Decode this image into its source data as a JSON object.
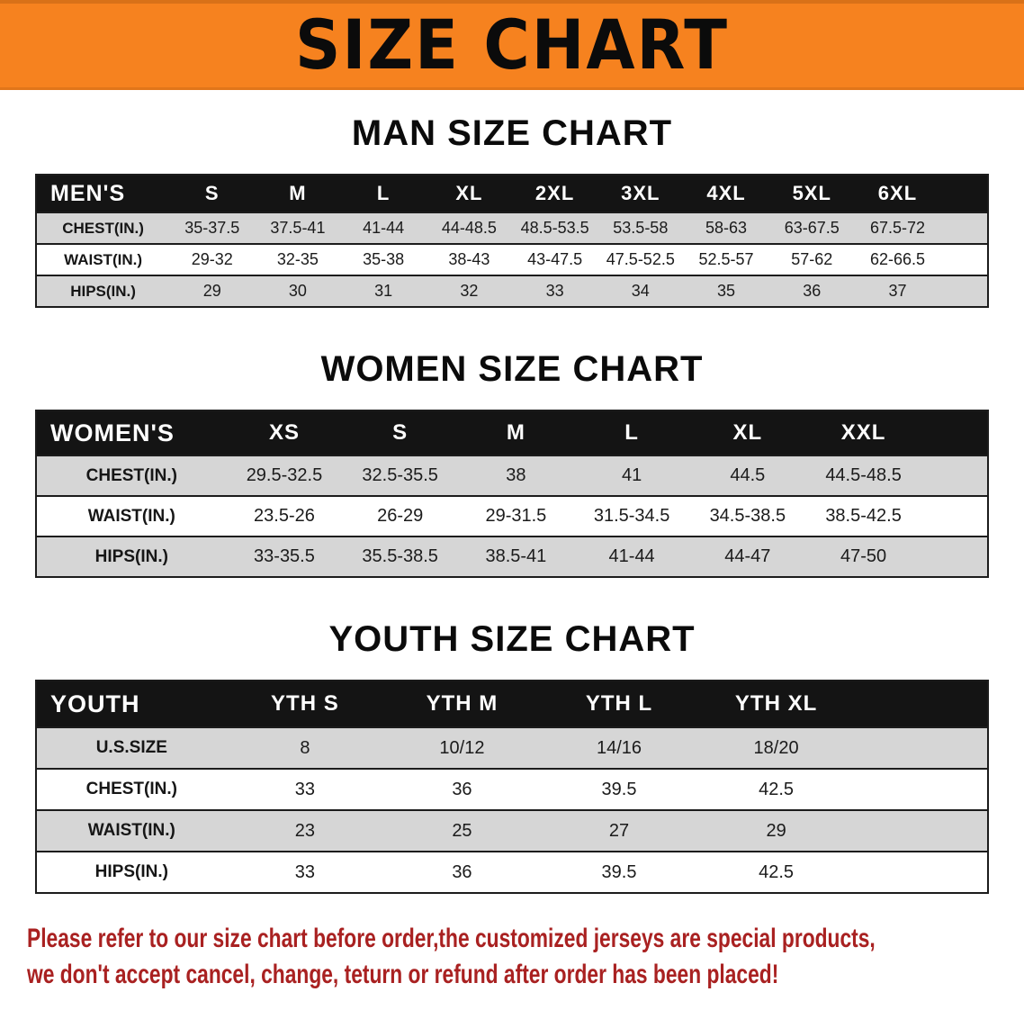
{
  "banner": {
    "title": "SIZE CHART"
  },
  "sections": [
    {
      "id": "men",
      "heading": "MAN SIZE CHART",
      "table": {
        "header": [
          "MEN'S",
          "S",
          "M",
          "L",
          "XL",
          "2XL",
          "3XL",
          "4XL",
          "5XL",
          "6XL"
        ],
        "rows": [
          [
            "CHEST(IN.)",
            "35-37.5",
            "37.5-41",
            "41-44",
            "44-48.5",
            "48.5-53.5",
            "53.5-58",
            "58-63",
            "63-67.5",
            "67.5-72"
          ],
          [
            "WAIST(IN.)",
            "29-32",
            "32-35",
            "35-38",
            "38-43",
            "43-47.5",
            "47.5-52.5",
            "52.5-57",
            "57-62",
            "62-66.5"
          ],
          [
            "HIPS(IN.)",
            "29",
            "30",
            "31",
            "32",
            "33",
            "34",
            "35",
            "36",
            "37"
          ]
        ]
      }
    },
    {
      "id": "women",
      "heading": "WOMEN SIZE CHART",
      "table": {
        "header": [
          "WOMEN'S",
          "XS",
          "S",
          "M",
          "L",
          "XL",
          "XXL"
        ],
        "rows": [
          [
            "CHEST(IN.)",
            "29.5-32.5",
            "32.5-35.5",
            "38",
            "41",
            "44.5",
            "44.5-48.5"
          ],
          [
            "WAIST(IN.)",
            "23.5-26",
            "26-29",
            "29-31.5",
            "31.5-34.5",
            "34.5-38.5",
            "38.5-42.5"
          ],
          [
            "HIPS(IN.)",
            "33-35.5",
            "35.5-38.5",
            "38.5-41",
            "41-44",
            "44-47",
            "47-50"
          ]
        ]
      }
    },
    {
      "id": "youth",
      "heading": "YOUTH SIZE CHART",
      "table": {
        "header": [
          "YOUTH",
          "YTH S",
          "YTH M",
          "YTH L",
          "YTH XL"
        ],
        "rows": [
          [
            "U.S.SIZE",
            "8",
            "10/12",
            "14/16",
            "18/20"
          ],
          [
            "CHEST(IN.)",
            "33",
            "36",
            "39.5",
            "42.5"
          ],
          [
            "WAIST(IN.)",
            "23",
            "25",
            "27",
            "29"
          ],
          [
            "HIPS(IN.)",
            "33",
            "36",
            "39.5",
            "42.5"
          ]
        ]
      }
    }
  ],
  "disclaimer": {
    "line1": "Please refer to our size chart before order,the customized jerseys are special products,",
    "line2": "we don't accept cancel, change, teturn or refund after order has been placed!"
  },
  "colors": {
    "banner_bg": "#F6821F",
    "header_bg": "#141414",
    "row_stripe": "#D6D6D6",
    "table_border": "#1C1C1C",
    "disclaimer_red": "#A92121"
  }
}
